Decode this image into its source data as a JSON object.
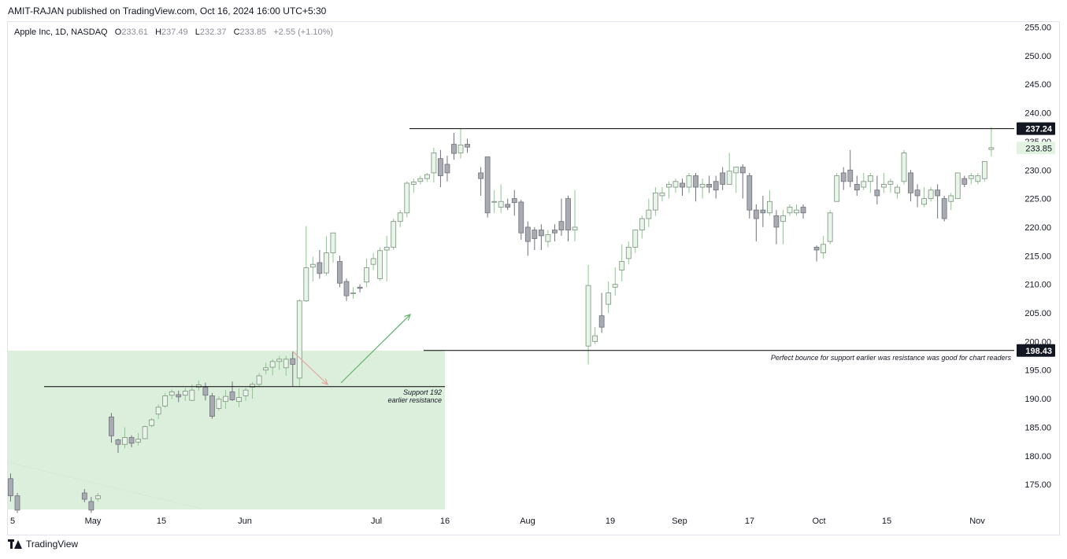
{
  "header": {
    "published": "AMIT-RAJAN published on TradingView.com, Oct 16, 2024 16:00 UTC+5:30"
  },
  "legend": {
    "symbol": "Apple Inc, 1D, NASDAQ",
    "o_label": "O",
    "o": "233.61",
    "h_label": "H",
    "h": "237.49",
    "l_label": "L",
    "l": "232.37",
    "c_label": "C",
    "c": "233.85",
    "change": "+2.55 (+1.10%)"
  },
  "footer": {
    "brand": "TradingView"
  },
  "colors": {
    "up_fill": "#e8f5e9",
    "up_border": "#7e8f7f",
    "up_wick": "#8bc98b",
    "down_fill": "#a9abb3",
    "down_border": "#6f727b",
    "zone": "#dcefdc",
    "line": "#000000",
    "arrow_down": "#e3a7a0",
    "arrow_up": "#5fb36a"
  },
  "chart_data": {
    "type": "candlestick",
    "title": "Apple Inc, 1D, NASDAQ",
    "xlabel": "",
    "ylabel": "",
    "ylim": [
      170,
      256
    ],
    "y_ticks": [
      "255.00",
      "250.00",
      "245.00",
      "240.00",
      "235.00",
      "230.00",
      "225.00",
      "220.00",
      "215.00",
      "210.00",
      "205.00",
      "200.00",
      "195.00",
      "190.00",
      "185.00",
      "180.00",
      "175.00"
    ],
    "x_ticks": [
      "5",
      "May",
      "15",
      "Jun",
      "Jul",
      "16",
      "Aug",
      "19",
      "Sep",
      "17",
      "Oct",
      "15",
      "Nov"
    ],
    "grid": false,
    "price_labels": [
      {
        "value": 237.24,
        "label": "237.24",
        "style": "dark"
      },
      {
        "value": 233.85,
        "label": "233.85",
        "style": "green"
      },
      {
        "value": 198.43,
        "label": "198.43",
        "style": "dark"
      }
    ],
    "horizontal_lines": [
      {
        "value": 237.24
      },
      {
        "value": 198.43
      },
      {
        "value": 192.1
      }
    ],
    "zone": {
      "from": 171,
      "to": 198.4
    },
    "annotations": [
      {
        "lines": [
          "Support 192",
          "earlier resistance"
        ]
      },
      {
        "lines": [
          "Perfect bounce for support earlier was resistance was good for chart readers"
        ]
      }
    ],
    "candles": [
      [
        0,
        176.0,
        173.0,
        176.9,
        172.0
      ],
      [
        1,
        173.0,
        170.5,
        173.5,
        170.0
      ],
      [
        11,
        173.5,
        172.4,
        174.2,
        171.9
      ],
      [
        12,
        172.0,
        170.5,
        172.8,
        170.0
      ],
      [
        13,
        172.5,
        173.0,
        173.5,
        172.0
      ],
      [
        15,
        186.8,
        183.5,
        187.5,
        182.3
      ],
      [
        16,
        182.8,
        182.0,
        183.0,
        180.5
      ],
      [
        17,
        182.0,
        183.2,
        185.0,
        181.3
      ],
      [
        18,
        183.2,
        182.2,
        183.6,
        181.5
      ],
      [
        19,
        182.4,
        182.9,
        184.0,
        181.8
      ],
      [
        20,
        183.0,
        185.1,
        185.3,
        182.9
      ],
      [
        21,
        185.3,
        186.3,
        186.6,
        185.0
      ],
      [
        22,
        187.3,
        188.5,
        189.0,
        186.4
      ],
      [
        23,
        188.7,
        190.5,
        191.0,
        188.4
      ],
      [
        24,
        190.6,
        191.2,
        191.6,
        189.9
      ],
      [
        25,
        190.7,
        190.3,
        191.4,
        189.4
      ],
      [
        26,
        190.6,
        191.3,
        191.9,
        189.6
      ],
      [
        27,
        189.7,
        191.5,
        192.5,
        189.6
      ],
      [
        28,
        192.0,
        192.4,
        193.2,
        191.4
      ],
      [
        29,
        192.0,
        190.6,
        192.8,
        189.7
      ],
      [
        30,
        190.5,
        186.9,
        191.0,
        186.5
      ],
      [
        31,
        188.3,
        189.9,
        190.4,
        187.9
      ],
      [
        32,
        189.5,
        190.4,
        191.5,
        188.2
      ],
      [
        33,
        191.2,
        189.8,
        193.0,
        189.6
      ],
      [
        34,
        189.5,
        190.2,
        191.8,
        188.5
      ],
      [
        35,
        190.5,
        191.5,
        191.9,
        189.6
      ],
      [
        36,
        192.0,
        192.5,
        192.9,
        190.0
      ],
      [
        37,
        192.5,
        194.0,
        194.5,
        192.0
      ],
      [
        38,
        195.0,
        195.4,
        196.3,
        194.3
      ],
      [
        39,
        195.5,
        196.5,
        196.9,
        194.1
      ],
      [
        40,
        196.5,
        196.9,
        197.5,
        195.0
      ],
      [
        41,
        195.4,
        196.9,
        197.5,
        194.0
      ],
      [
        42,
        197.0,
        196.0,
        198.2,
        192.2
      ],
      [
        43,
        193.6,
        207.1,
        207.4,
        192.2
      ],
      [
        44,
        207.1,
        212.9,
        220.2,
        206.9
      ],
      [
        45,
        213.0,
        213.5,
        214.8,
        210.5
      ],
      [
        46,
        213.8,
        211.9,
        216.0,
        211.0
      ],
      [
        47,
        212.0,
        215.5,
        218.4,
        211.5
      ],
      [
        48,
        215.5,
        219.0,
        218.5,
        213.8
      ],
      [
        49,
        214.0,
        210.2,
        215.0,
        209.5
      ],
      [
        50,
        210.5,
        208.0,
        211.0,
        207.1
      ],
      [
        51,
        208.5,
        208.5,
        209.5,
        207.5
      ],
      [
        52,
        209.5,
        209.3,
        210.0,
        208.6
      ],
      [
        53,
        210.4,
        212.9,
        214.5,
        209.5
      ],
      [
        54,
        213.5,
        214.5,
        215.5,
        212.5
      ],
      [
        55,
        211.0,
        215.9,
        216.5,
        210.6
      ],
      [
        56,
        216.0,
        216.5,
        218.5,
        210.5
      ],
      [
        57,
        216.5,
        221.0,
        221.5,
        216.0
      ],
      [
        58,
        221.0,
        222.5,
        223.0,
        220.0
      ],
      [
        59,
        222.5,
        227.7,
        228.0,
        221.7
      ],
      [
        60,
        227.5,
        227.9,
        228.5,
        226.0
      ],
      [
        61,
        228.0,
        228.5,
        229.0,
        227.5
      ],
      [
        62,
        228.5,
        229.2,
        229.5,
        228.0
      ],
      [
        63,
        229.5,
        233.0,
        233.9,
        227.8
      ],
      [
        64,
        232.0,
        229.0,
        233.5,
        227.0
      ],
      [
        65,
        231.0,
        229.5,
        232.5,
        228.0
      ],
      [
        66,
        234.5,
        232.9,
        236.5,
        231.8
      ],
      [
        67,
        233.0,
        234.4,
        237.2,
        232.0
      ],
      [
        68,
        234.5,
        234.0,
        235.5,
        233.0
      ],
      [
        70,
        229.5,
        228.5,
        230.5,
        225.5
      ],
      [
        71,
        232.3,
        222.5,
        230.5,
        221.7
      ],
      [
        72,
        224.5,
        224.5,
        226.5,
        222.5
      ],
      [
        73,
        223.5,
        224.5,
        227.5,
        222.5
      ],
      [
        74,
        224.0,
        223.5,
        225.0,
        223.0
      ],
      [
        75,
        225.0,
        224.3,
        226.5,
        222.0
      ],
      [
        76,
        224.4,
        219.0,
        224.8,
        217.8
      ],
      [
        77,
        220.0,
        217.5,
        221.0,
        215.0
      ],
      [
        78,
        219.5,
        218.0,
        220.0,
        216.0
      ],
      [
        79,
        219.5,
        218.5,
        220.5,
        216.0
      ],
      [
        80,
        217.5,
        218.7,
        219.5,
        216.5
      ],
      [
        81,
        219.5,
        219.0,
        220.5,
        217.5
      ],
      [
        82,
        221.0,
        219.5,
        225.0,
        218.5
      ],
      [
        83,
        225.0,
        219.5,
        225.5,
        217.5
      ],
      [
        84,
        219.5,
        220.0,
        226.5,
        217.5
      ],
      [
        86,
        199.2,
        209.8,
        213.4,
        196.0
      ],
      [
        87,
        200.0,
        201.0,
        202.5,
        199.5
      ],
      [
        88,
        204.5,
        202.5,
        208.5,
        201.5
      ],
      [
        89,
        206.5,
        208.5,
        210.5,
        205.0
      ],
      [
        90,
        209.5,
        210.0,
        213.0,
        208.0
      ],
      [
        91,
        212.5,
        214.0,
        217.0,
        210.5
      ],
      [
        92,
        214.5,
        216.5,
        217.5,
        213.5
      ],
      [
        93,
        216.5,
        219.5,
        219.5,
        215.5
      ],
      [
        94,
        219.5,
        221.5,
        222.0,
        218.0
      ],
      [
        95,
        221.5,
        223.0,
        225.0,
        220.0
      ],
      [
        96,
        223.0,
        226.0,
        227.0,
        222.0
      ],
      [
        97,
        225.5,
        226.0,
        227.0,
        224.5
      ],
      [
        98,
        227.0,
        227.5,
        228.0,
        225.0
      ],
      [
        99,
        227.0,
        228.0,
        228.5,
        226.0
      ],
      [
        100,
        227.7,
        227.0,
        228.5,
        225.5
      ],
      [
        101,
        227.0,
        229.0,
        229.5,
        226.0
      ],
      [
        102,
        229.0,
        227.0,
        229.5,
        224.5
      ],
      [
        103,
        227.0,
        227.5,
        228.5,
        225.0
      ],
      [
        104,
        227.5,
        227.0,
        229.0,
        226.0
      ],
      [
        105,
        228.0,
        226.5,
        229.0,
        225.0
      ],
      [
        106,
        229.5,
        227.5,
        230.5,
        226.5
      ],
      [
        107,
        227.5,
        229.8,
        233.0,
        227.5
      ],
      [
        108,
        229.5,
        230.5,
        230.5,
        226.0
      ],
      [
        109,
        230.5,
        229.5,
        231.0,
        225.0
      ],
      [
        110,
        229.0,
        223.0,
        229.5,
        221.5
      ],
      [
        111,
        223.0,
        221.5,
        224.0,
        217.5
      ],
      [
        112,
        223.0,
        222.5,
        225.5,
        220.0
      ],
      [
        113,
        222.5,
        224.5,
        226.5,
        222.0
      ],
      [
        114,
        222.0,
        220.0,
        223.0,
        217.0
      ],
      [
        115,
        221.0,
        222.0,
        223.0,
        217.0
      ],
      [
        116,
        222.5,
        223.5,
        224.0,
        222.0
      ],
      [
        117,
        222.5,
        223.0,
        224.0,
        222.0
      ],
      [
        118,
        223.5,
        222.5,
        224.0,
        221.5
      ],
      [
        120,
        216.5,
        216.0,
        216.8,
        214.0
      ],
      [
        121,
        215.5,
        217.0,
        218.5,
        214.5
      ],
      [
        122,
        217.5,
        222.5,
        223.0,
        217.0
      ],
      [
        123,
        224.5,
        229.0,
        229.5,
        224.5
      ],
      [
        124,
        229.5,
        228.0,
        230.5,
        226.5
      ],
      [
        125,
        230.0,
        228.0,
        233.5,
        227.0
      ],
      [
        126,
        227.5,
        226.5,
        229.0,
        225.5
      ],
      [
        127,
        227.0,
        228.0,
        229.5,
        226.5
      ],
      [
        128,
        228.0,
        229.0,
        229.5,
        226.0
      ],
      [
        129,
        226.5,
        225.5,
        229.0,
        224.0
      ],
      [
        130,
        227.0,
        227.5,
        229.5,
        226.0
      ],
      [
        131,
        227.5,
        228.0,
        228.5,
        226.0
      ],
      [
        132,
        226.0,
        227.0,
        227.5,
        225.0
      ],
      [
        133,
        228.0,
        233.0,
        233.5,
        227.5
      ],
      [
        134,
        229.5,
        226.0,
        230.0,
        224.5
      ],
      [
        135,
        226.5,
        225.5,
        227.5,
        223.5
      ],
      [
        136,
        224.0,
        225.0,
        227.0,
        223.5
      ],
      [
        137,
        225.0,
        226.5,
        227.0,
        224.5
      ],
      [
        138,
        226.5,
        225.5,
        227.5,
        221.5
      ],
      [
        139,
        225.0,
        221.5,
        225.5,
        221.0
      ],
      [
        140,
        224.5,
        225.5,
        226.0,
        223.0
      ],
      [
        141,
        225.0,
        229.5,
        229.5,
        225.0
      ],
      [
        142,
        228.5,
        227.5,
        229.0,
        227.0
      ],
      [
        143,
        228.5,
        229.0,
        229.5,
        227.5
      ],
      [
        144,
        228.0,
        229.0,
        229.5,
        227.5
      ],
      [
        145,
        228.5,
        231.5,
        231.5,
        228.0
      ],
      [
        146,
        233.6,
        233.9,
        237.5,
        232.4
      ]
    ]
  }
}
